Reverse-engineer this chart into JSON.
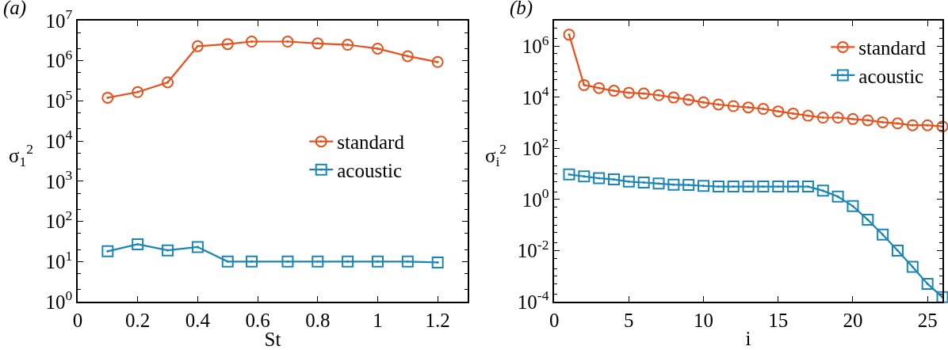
{
  "chart_data": [
    {
      "type": "line",
      "title": "(a)",
      "xlabel": "St",
      "ylabel": "σ$_{1}$$^{2}$",
      "log": "y",
      "grid": false,
      "legend": "right",
      "xlim": [
        0,
        1.3
      ],
      "xticks": [
        0,
        0.2,
        0.4,
        0.6,
        0.8,
        1,
        1.2
      ],
      "ylim": [
        1,
        10000000
      ],
      "yticks": [
        {
          "value": 1,
          "label": "10$^{0}$"
        },
        {
          "value": 10,
          "label": "10$^{1}$"
        },
        {
          "value": 100,
          "label": "10$^{2}$"
        },
        {
          "value": 1000,
          "label": "10$^{3}$"
        },
        {
          "value": 10000,
          "label": "10$^{4}$"
        },
        {
          "value": 100000,
          "label": "10$^{5}$"
        },
        {
          "value": 1000000,
          "label": "10$^{6}$"
        },
        {
          "value": 10000000,
          "label": "10$^{7}$"
        }
      ],
      "x": [
        0.1,
        0.2,
        0.3,
        0.4,
        0.5,
        0.58,
        0.7,
        0.8,
        0.9,
        1.0,
        1.1,
        1.2
      ],
      "series": [
        {
          "name": "standard",
          "color": "#e8501c",
          "marker": "circle",
          "values": [
            120000,
            166000,
            290000,
            2300000,
            2600000,
            3000000,
            3000000,
            2700000,
            2500000,
            2000000,
            1300000,
            930000
          ]
        },
        {
          "name": "acoustic",
          "color": "#1a86b8",
          "marker": "square",
          "values": [
            18,
            27,
            19,
            23,
            10,
            10,
            10,
            10,
            10,
            10,
            10,
            9.5
          ]
        }
      ]
    },
    {
      "type": "line",
      "title": "(b)",
      "xlabel": "i",
      "ylabel": "σ$_{i}$$^{2}$",
      "log": "y",
      "grid": false,
      "legend": "top right",
      "xlim": [
        0,
        26
      ],
      "xticks": [
        0,
        5,
        10,
        15,
        20,
        25
      ],
      "ylim": [
        0.0001,
        10000000
      ],
      "yticks": [
        {
          "value": 0.0001,
          "label": "10$^{-4}$"
        },
        {
          "value": 0.01,
          "label": "10$^{-2}$"
        },
        {
          "value": 1,
          "label": "10$^{0}$"
        },
        {
          "value": 100,
          "label": "10$^{2}$"
        },
        {
          "value": 10000,
          "label": "10$^{4}$"
        },
        {
          "value": 1000000,
          "label": "10$^{6}$"
        }
      ],
      "x": [
        1,
        2,
        3,
        4,
        5,
        6,
        7,
        8,
        9,
        10,
        11,
        12,
        13,
        14,
        15,
        16,
        17,
        18,
        19,
        20,
        21,
        22,
        23,
        24,
        25,
        26
      ],
      "series": [
        {
          "name": "standard",
          "color": "#e8501c",
          "marker": "circle",
          "values": [
            2800000,
            30000,
            23000,
            18000,
            15000,
            14000,
            12000,
            9800,
            8000,
            6300,
            5200,
            4500,
            4000,
            3500,
            2800,
            2300,
            1900,
            1600,
            1600,
            1400,
            1250,
            1050,
            950,
            800,
            800,
            720
          ]
        },
        {
          "name": "acoustic",
          "color": "#1a86b8",
          "marker": "square",
          "values": [
            9.5,
            8,
            6.8,
            6.1,
            5,
            4.6,
            4.2,
            3.8,
            3.7,
            3.4,
            3.2,
            3.2,
            3.2,
            3.2,
            3.2,
            3.2,
            3.2,
            2.2,
            1.3,
            0.55,
            0.16,
            0.042,
            0.01,
            0.0023,
            0.0005,
            0.00015
          ]
        }
      ]
    }
  ]
}
